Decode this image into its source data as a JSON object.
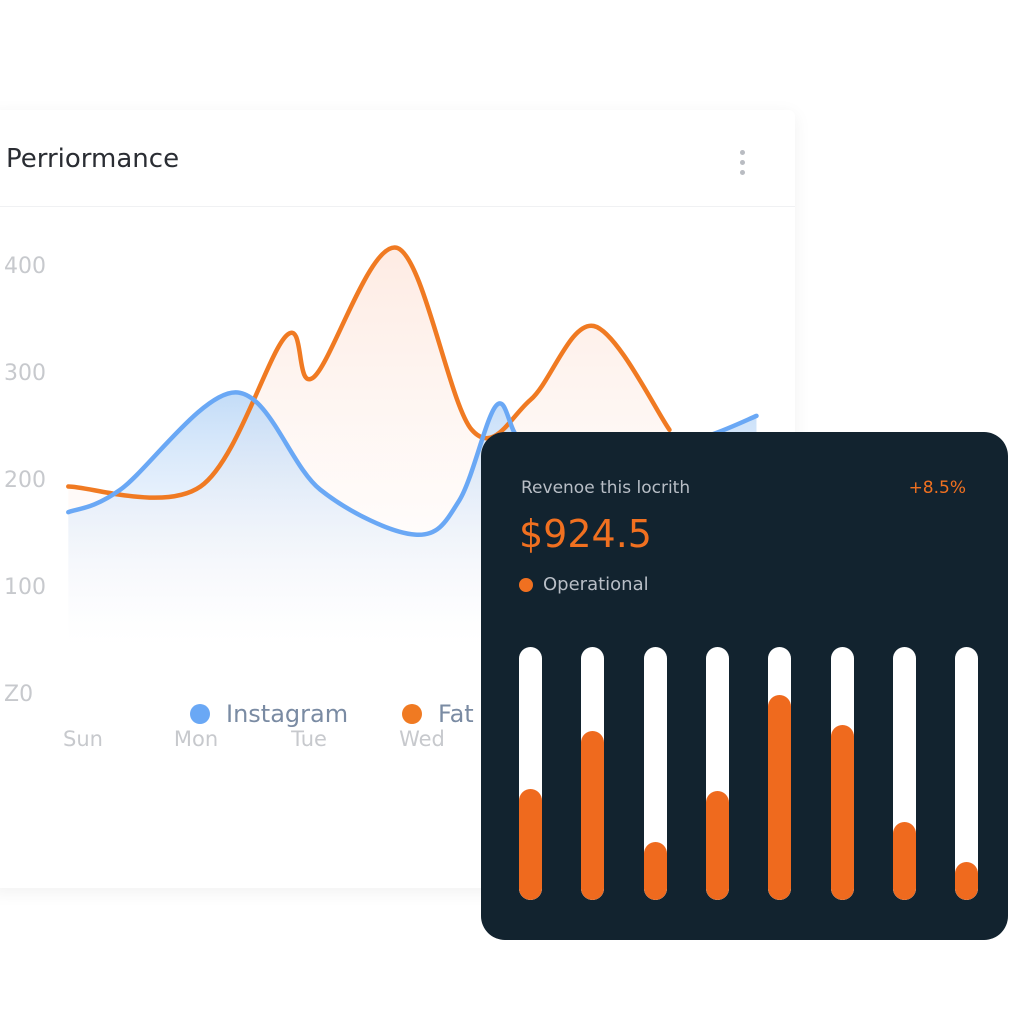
{
  "panel": {
    "title": "Perriormance",
    "menu_icon": "kebab-vertical-icon"
  },
  "chart_data": {
    "type": "area",
    "yticks": [
      "400",
      "300",
      "200",
      "100",
      "Z0"
    ],
    "ytick_values": [
      400,
      300,
      200,
      100,
      0
    ],
    "categories": [
      "Sun",
      "Mon",
      "Tue",
      "Wed"
    ],
    "ylim": [
      0,
      420
    ],
    "grid": false,
    "legend_placement": "bottom",
    "series": [
      {
        "name": "Instagram",
        "color": "#6aa8f5",
        "x": [
          -0.13,
          0.33,
          1.35,
          2.1,
          2.94,
          3.33,
          3.66,
          3.87,
          4.3,
          4.9,
          5.55,
          5.96
        ],
        "y": [
          169,
          190,
          281,
          190,
          148,
          180,
          269,
          236,
          215,
          220,
          241,
          259
        ]
      },
      {
        "name": "Fat",
        "color": "#f07a22",
        "x": [
          -0.13,
          1.04,
          1.8,
          2.04,
          2.78,
          3.44,
          3.96,
          4.52,
          5.19
        ],
        "y": [
          193,
          193,
          334,
          295,
          416,
          246,
          274,
          343,
          246
        ]
      }
    ]
  },
  "revenue_card": {
    "label": "Revenoe this locrith",
    "change": "+8.5%",
    "value": "$924.5",
    "status": "Operational",
    "accent": "#ef6a1e",
    "bars": [
      0.44,
      0.67,
      0.23,
      0.43,
      0.81,
      0.69,
      0.31,
      0.15
    ]
  }
}
